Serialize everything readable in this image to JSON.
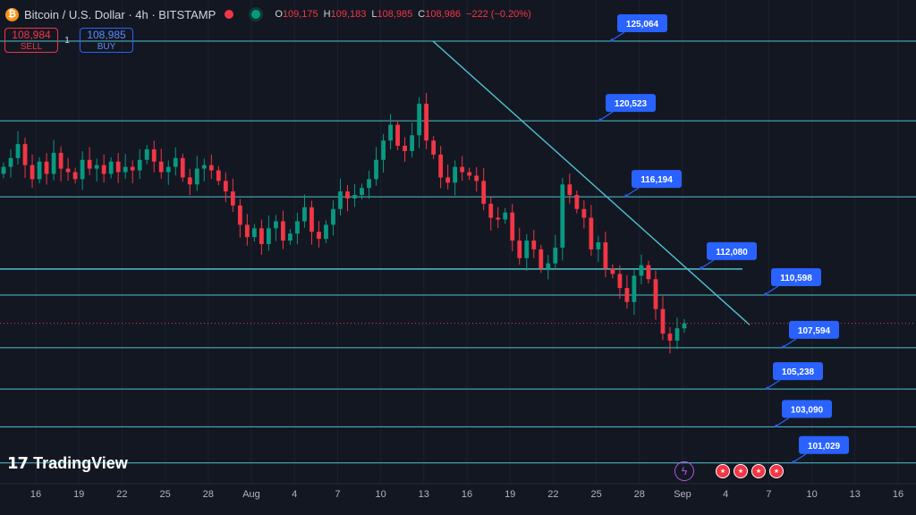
{
  "header": {
    "coin_glyph": "₿",
    "symbol": "Bitcoin / U.S. Dollar · 4h · BITSTAMP",
    "ohlc": [
      {
        "k": "O",
        "v": "109,175"
      },
      {
        "k": "H",
        "v": "109,183"
      },
      {
        "k": "L",
        "v": "108,985"
      },
      {
        "k": "C",
        "v": "108,986"
      },
      {
        "k": "",
        "v": "−222 (−0.20%)"
      }
    ]
  },
  "trade": {
    "sell_price": "108,984",
    "sell_label": "SELL",
    "qty": "1",
    "buy_price": "108,985",
    "buy_label": "BUY"
  },
  "branding": {
    "logo": "TradingView"
  },
  "colors": {
    "up": "#089981",
    "down": "#f23645",
    "level": "#4fc3cf",
    "label": "#2962ff"
  },
  "chart_data": {
    "type": "candlestick",
    "x_ticks": [
      "16",
      "19",
      "22",
      "25",
      "28",
      "Aug",
      "4",
      "7",
      "10",
      "13",
      "16",
      "19",
      "22",
      "25",
      "28",
      "Sep",
      "4",
      "7",
      "10",
      "13",
      "16"
    ],
    "y_range": [
      100000,
      127000
    ],
    "levels": [
      125064,
      120523,
      116194,
      112080,
      110598,
      107594,
      105238,
      103090,
      101029
    ],
    "level_labels": [
      "125,064",
      "120,523",
      "116,194",
      "112,080",
      "110,598",
      "107,594",
      "105,238",
      "103,090",
      "101,029"
    ],
    "trendline": {
      "from": [
        "Aug 13",
        125064
      ],
      "to": [
        "Sep 3",
        108900
      ]
    },
    "last_price": 108986,
    "closes": [
      117900,
      118400,
      119200,
      118000,
      117200,
      118200,
      117500,
      118700,
      117800,
      117600,
      117200,
      118300,
      117800,
      118000,
      117500,
      118200,
      117600,
      117900,
      117700,
      118300,
      118900,
      118200,
      117600,
      117900,
      118400,
      117300,
      116900,
      117800,
      118000,
      117700,
      117100,
      116500,
      115700,
      114600,
      113900,
      114400,
      113500,
      114400,
      114800,
      113700,
      114100,
      114800,
      115600,
      114200,
      113800,
      114600,
      115500,
      116500,
      116100,
      116300,
      116700,
      117200,
      118300,
      119400,
      120300,
      119100,
      118800,
      119700,
      121500,
      119400,
      118600,
      117300,
      117000,
      117900,
      117600,
      117400,
      117100,
      115800,
      115000,
      114900,
      115300,
      113700,
      112700,
      113700,
      113200,
      112100,
      112400,
      113300,
      116900,
      116300,
      115500,
      115000,
      113200,
      113600,
      112100,
      111800,
      111000,
      110200,
      111700,
      112300,
      111500,
      109800,
      108400,
      108000,
      108700,
      108986
    ]
  }
}
